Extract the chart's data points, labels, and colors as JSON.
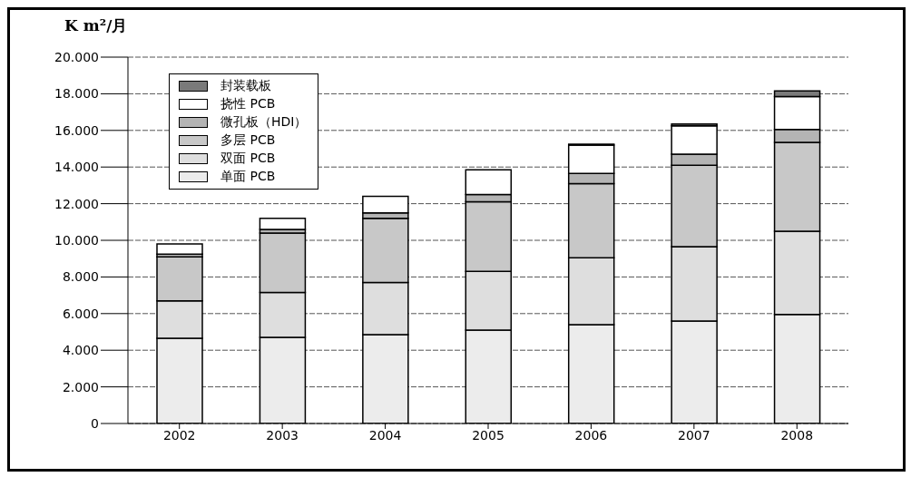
{
  "chart_data": {
    "type": "bar",
    "stacked": true,
    "ylabel": "K m²/月",
    "categories": [
      "2002",
      "2003",
      "2004",
      "2005",
      "2006",
      "2007",
      "2008"
    ],
    "series": [
      {
        "name": "单面 PCB",
        "color": "#ececec",
        "values": [
          4650,
          4700,
          4850,
          5100,
          5400,
          5600,
          5950
        ]
      },
      {
        "name": "双面 PCB",
        "color": "#dedede",
        "values": [
          2050,
          2450,
          2850,
          3200,
          3650,
          4050,
          4550
        ]
      },
      {
        "name": "多层 PCB",
        "color": "#c8c8c8",
        "values": [
          2400,
          3250,
          3500,
          3800,
          4050,
          4450,
          4850
        ]
      },
      {
        "name": "微孔板（HDI）",
        "color": "#b4b4b4",
        "values": [
          150,
          200,
          300,
          400,
          550,
          600,
          700
        ]
      },
      {
        "name": "挠性 PCB",
        "color": "#ffffff",
        "values": [
          550,
          600,
          900,
          1350,
          1550,
          1550,
          1800
        ]
      },
      {
        "name": "封装载板",
        "color": "#7a7a7a",
        "values": [
          0,
          0,
          0,
          0,
          50,
          100,
          300
        ]
      }
    ],
    "ylim": [
      0,
      20000
    ],
    "yticks": [
      {
        "value": 0,
        "label": "0"
      },
      {
        "value": 2000,
        "label": "2.000"
      },
      {
        "value": 4000,
        "label": "4.000"
      },
      {
        "value": 6000,
        "label": "6.000"
      },
      {
        "value": 8000,
        "label": "8.000"
      },
      {
        "value": 10000,
        "label": "10.000"
      },
      {
        "value": 12000,
        "label": "12.000"
      },
      {
        "value": 14000,
        "label": "14.000"
      },
      {
        "value": 16000,
        "label": "16.000"
      },
      {
        "value": 18000,
        "label": "18.000"
      },
      {
        "value": 20000,
        "label": "20.000"
      }
    ],
    "grid": "y",
    "legend": "top left"
  }
}
